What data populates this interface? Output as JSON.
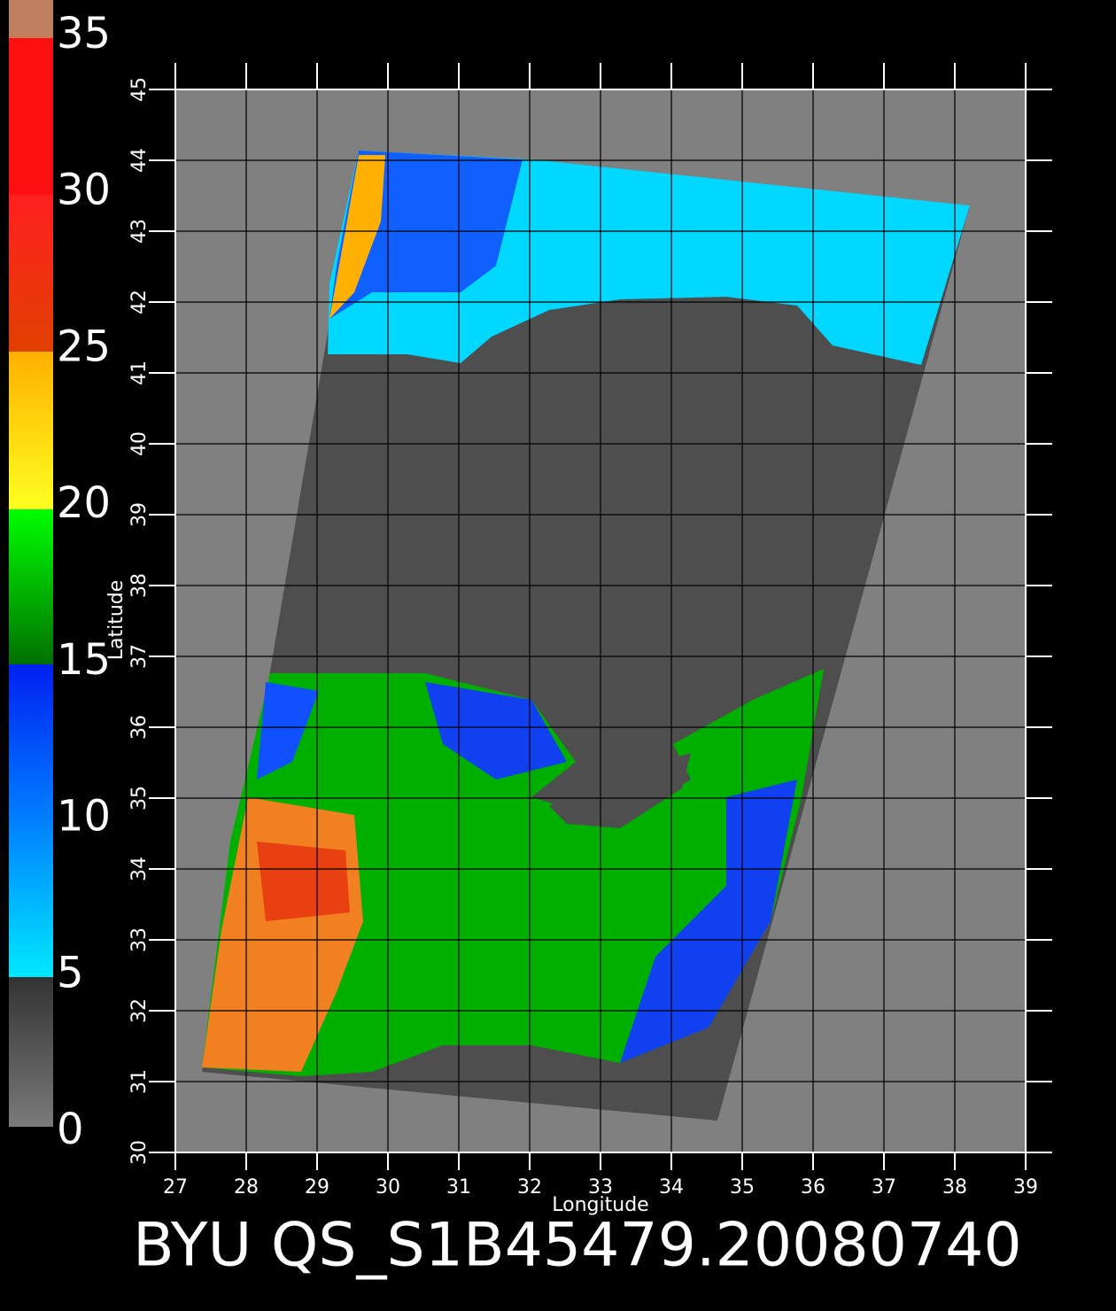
{
  "colorbar": {
    "ticks": [
      0,
      5,
      10,
      15,
      20,
      25,
      30,
      35
    ]
  },
  "map": {
    "xlabel": "Longitude",
    "ylabel": "Latitude",
    "xlim": [
      27,
      39
    ],
    "ylim": [
      30,
      45
    ],
    "xticks": [
      27,
      28,
      29,
      30,
      31,
      32,
      33,
      34,
      35,
      36,
      37,
      38,
      39
    ],
    "yticks": [
      30,
      31,
      32,
      33,
      34,
      35,
      36,
      37,
      38,
      39,
      40,
      41,
      42,
      43,
      44,
      45
    ]
  },
  "title": "BYU QS_S1B45479.20080740"
}
